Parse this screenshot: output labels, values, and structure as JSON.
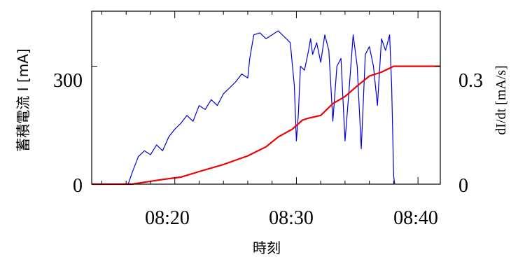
{
  "chart_data": {
    "type": "line",
    "xlabel": "時刻",
    "ylabel_left": "蓄積電流  I [mA]",
    "ylabel_right": "dI/dt [mA/s]",
    "x_ticks": [
      "08:20",
      "08:30",
      "08:40"
    ],
    "y_left_ticks": [
      "0",
      "300"
    ],
    "y_right_ticks": [
      "0",
      "0.3"
    ],
    "x_range": [
      "08:13:10",
      "08:41:50"
    ],
    "y_left_range": [
      0,
      440
    ],
    "y_right_range": [
      0,
      0.44
    ],
    "grid": false,
    "series": [
      {
        "color": "#0000dd",
        "axis": "left",
        "x": [
          "08:16:10",
          "08:16:30",
          "08:17:00",
          "08:17:30",
          "08:18:00",
          "08:18:30",
          "08:19:00",
          "08:19:30",
          "08:20:00",
          "08:20:30",
          "08:21:00",
          "08:21:30",
          "08:22:00",
          "08:22:30",
          "08:23:00",
          "08:23:30",
          "08:24:00",
          "08:24:30",
          "08:25:00",
          "08:25:30",
          "08:26:00",
          "08:26:10",
          "08:26:30",
          "08:27:00",
          "08:27:30",
          "08:28:00",
          "08:28:30",
          "08:29:00",
          "08:29:30",
          "08:29:50",
          "08:30:00",
          "08:30:10",
          "08:30:20",
          "08:30:40",
          "08:31:00",
          "08:31:10",
          "08:31:20",
          "08:31:40",
          "08:32:00",
          "08:32:20",
          "08:32:40",
          "08:33:00",
          "08:33:20",
          "08:33:40",
          "08:34:00",
          "08:34:20",
          "08:34:40",
          "08:35:00",
          "08:35:20",
          "08:35:40",
          "08:36:00",
          "08:36:20",
          "08:36:40",
          "08:37:00",
          "08:37:20",
          "08:37:40",
          "08:37:50",
          "08:38:00",
          "08:38:05"
        ],
        "values": [
          0,
          30,
          70,
          85,
          75,
          100,
          85,
          120,
          140,
          155,
          175,
          160,
          200,
          190,
          215,
          200,
          230,
          245,
          260,
          280,
          270,
          320,
          380,
          385,
          370,
          380,
          390,
          375,
          360,
          250,
          110,
          180,
          300,
          290,
          340,
          370,
          330,
          360,
          310,
          380,
          340,
          160,
          300,
          320,
          110,
          240,
          380,
          300,
          90,
          330,
          350,
          300,
          200,
          370,
          340,
          380,
          250,
          20,
          0
        ]
      },
      {
        "color": "#ee0000",
        "axis": "right",
        "x": [
          "08:13:10",
          "08:16:30",
          "08:17:30",
          "08:19:00",
          "08:20:30",
          "08:22:00",
          "08:24:00",
          "08:26:00",
          "08:27:30",
          "08:28:30",
          "08:29:40",
          "08:30:30",
          "08:31:00",
          "08:32:00",
          "08:33:00",
          "08:34:00",
          "08:35:00",
          "08:36:00",
          "08:37:00",
          "08:38:00",
          "08:41:50"
        ],
        "values": [
          0,
          0,
          0.005,
          0.012,
          0.018,
          0.032,
          0.05,
          0.072,
          0.095,
          0.12,
          0.14,
          0.163,
          0.168,
          0.175,
          0.205,
          0.223,
          0.25,
          0.275,
          0.285,
          0.3,
          0.3
        ]
      }
    ]
  }
}
